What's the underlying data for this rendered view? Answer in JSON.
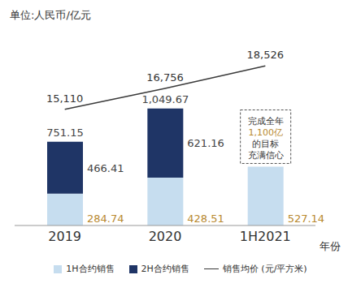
{
  "chart_data": {
    "type": "bar",
    "title": "单位:人民币/亿元",
    "x_label": "年份",
    "categories": [
      "2019",
      "2020",
      "1H2021"
    ],
    "stacked": true,
    "tick_labels": "x",
    "grid": false,
    "data_labels": true,
    "ylim": [
      0,
      1600
    ],
    "y2lim": [
      6000,
      20000
    ],
    "series": [
      {
        "name": "1H合约销售",
        "type": "bar",
        "color": "#c6ddef",
        "values": [
          284.74,
          428.51,
          527.14
        ]
      },
      {
        "name": "2H合约销售",
        "type": "bar",
        "color": "#1f3566",
        "values": [
          466.41,
          621.16,
          null
        ]
      },
      {
        "name": "销售均价 (元/平方米)",
        "type": "line",
        "axis": "y2",
        "color": "#3a3a3a",
        "values": [
          15110,
          16756,
          18526
        ],
        "value_labels": [
          "15,110",
          "16,756",
          "18,526"
        ]
      }
    ],
    "totals": [
      751.15,
      1049.67,
      null
    ],
    "total_labels": [
      "751.15",
      "1,049.67",
      null
    ],
    "annotation": {
      "category": "1H2021",
      "text": [
        "完成全年",
        "1,100亿",
        "的目标",
        "充满信心"
      ]
    }
  }
}
